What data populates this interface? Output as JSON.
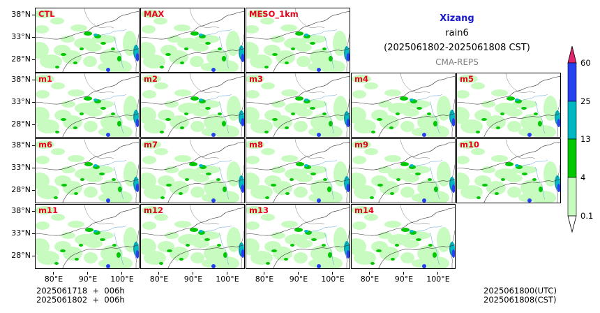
{
  "title": {
    "region": "Xizang",
    "variable": "rain6",
    "period": "(2025061802-2025061808 CST)",
    "source": "CMA-REPS"
  },
  "panels": [
    "CTL",
    "MAX",
    "MESO_1km",
    "m1",
    "m2",
    "m3",
    "m4",
    "m5",
    "m6",
    "m7",
    "m8",
    "m9",
    "m10",
    "m11",
    "m12",
    "m13",
    "m14"
  ],
  "axes": {
    "lat_ticks": [
      "38°N",
      "33°N",
      "28°N"
    ],
    "lon_ticks": [
      "80°E",
      "90°E",
      "100°E"
    ]
  },
  "colorbar": {
    "levels": [
      "0.1",
      "4",
      "13",
      "25",
      "60"
    ],
    "colors": [
      "#ffffff",
      "#c8fbc0",
      "#00c800",
      "#00b8c4",
      "#2642f0",
      "#e0246e"
    ]
  },
  "footer": {
    "left_line1": "2025061718  +  006h",
    "left_line2": "2025061802  +  006h",
    "right_line1": "2025061800(UTC)",
    "right_line2": "2025061808(CST)"
  }
}
